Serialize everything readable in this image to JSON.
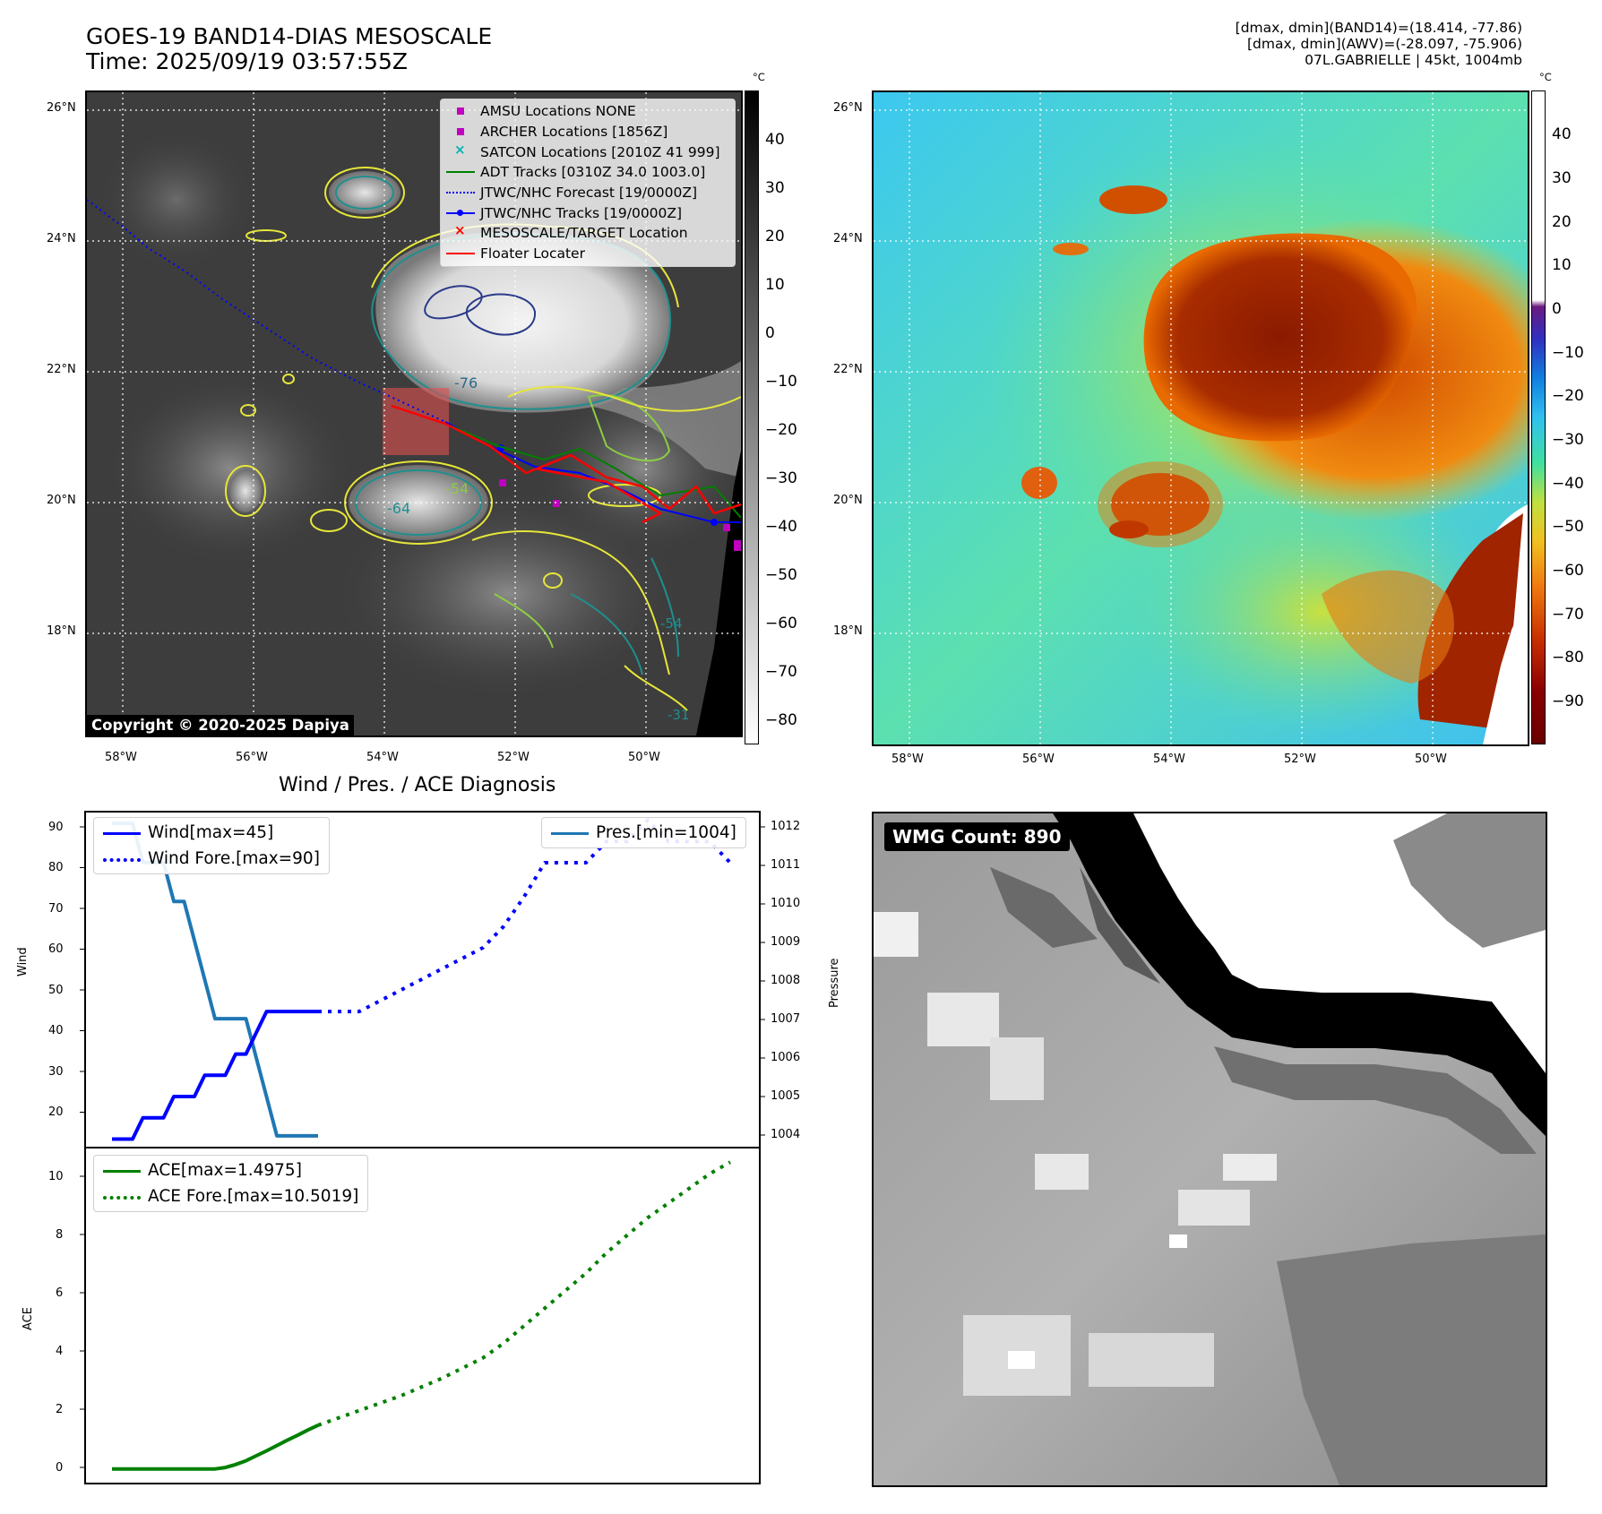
{
  "header": {
    "title_line1": "GOES-19 BAND14-DIAS MESOSCALE",
    "title_line2": "Time: 2025/09/19 03:57:55Z",
    "info_line1": "[dmax, dmin](BAND14)=(18.414, -77.86)",
    "info_line2": "[dmax, dmin](AWV)=(-28.097, -75.906)",
    "info_line3": "07L.GABRIELLE | 45kt, 1004mb"
  },
  "map_axes": {
    "lat_labels": [
      "26°N",
      "24°N",
      "22°N",
      "20°N",
      "18°N"
    ],
    "lon_labels": [
      "58°W",
      "56°W",
      "54°W",
      "52°W",
      "50°W"
    ]
  },
  "ir_panel": {
    "legend": [
      {
        "label": "AMSU Locations NONE",
        "symbol": "square",
        "color": "#c000c0"
      },
      {
        "label": "ARCHER Locations [1856Z]",
        "symbol": "square",
        "color": "#c000c0"
      },
      {
        "label": "SATCON Locations [2010Z 41 999]",
        "symbol": "x",
        "color": "#00b3b3"
      },
      {
        "label": "ADT Tracks [0310Z 34.0 1003.0]",
        "symbol": "line",
        "color": "#008000"
      },
      {
        "label": "JTWC/NHC Forecast [19/0000Z]",
        "symbol": "dotted",
        "color": "#0000ff"
      },
      {
        "label": "JTWC/NHC Tracks [19/0000Z]",
        "symbol": "line-dot",
        "color": "#0000ff"
      },
      {
        "label": "MESOSCALE/TARGET Location",
        "symbol": "x",
        "color": "#ff0000"
      },
      {
        "label": "Floater Locater",
        "symbol": "line",
        "color": "#ff0000"
      }
    ],
    "contour_labels": [
      "-76",
      "-64",
      "-54",
      "-54",
      "-31",
      "-54",
      "-54"
    ],
    "copyright": "Copyright © 2020-2025 Dapiya"
  },
  "ir_colorbar": {
    "unit": "°C",
    "ticks": [
      "40",
      "30",
      "20",
      "10",
      "0",
      "−10",
      "−20",
      "−30",
      "−40",
      "−50",
      "−60",
      "−70",
      "−80"
    ]
  },
  "wv_colorbar": {
    "unit": "°C",
    "ticks": [
      "40",
      "30",
      "20",
      "10",
      "0",
      "−10",
      "−20",
      "−30",
      "−40",
      "−50",
      "−60",
      "−70",
      "−80",
      "−90"
    ]
  },
  "diagnosis": {
    "title": "Wind / Pres. / ACE Diagnosis",
    "wind_ylabel": "Wind",
    "pres_ylabel": "Pressure",
    "ace_ylabel": "ACE",
    "wind_ticks": [
      "90",
      "80",
      "70",
      "60",
      "50",
      "40",
      "30",
      "20"
    ],
    "pres_ticks": [
      "1012",
      "1011",
      "1010",
      "1009",
      "1008",
      "1007",
      "1006",
      "1005",
      "1004"
    ],
    "ace_ticks": [
      "10",
      "8",
      "6",
      "4",
      "2",
      "0"
    ],
    "legend_wind": "Wind[max=45]",
    "legend_wind_fore": "Wind Fore.[max=90]",
    "legend_pres": "Pres.[min=1004]",
    "legend_ace": "ACE[max=1.4975]",
    "legend_ace_fore": "ACE Fore.[max=10.5019]"
  },
  "wmg": {
    "label": "WMG Count: 890"
  },
  "chart_data": [
    {
      "type": "line",
      "title": "Wind / Pres. / ACE Diagnosis",
      "ylabel": "Wind",
      "ylim": [
        13,
        92
      ],
      "x": [
        0,
        0.5,
        1,
        1.5,
        2,
        2.5,
        3,
        3.5,
        4,
        4.5,
        5,
        5.5,
        6,
        6.5,
        7,
        7.5,
        8,
        8.5,
        9,
        9.5,
        10
      ],
      "series": [
        {
          "name": "Wind[max=45]",
          "color": "#0000ff",
          "style": "solid",
          "x": [
            0,
            0.5,
            1,
            1.5,
            2,
            2.5,
            3,
            3.5,
            4,
            4.5,
            5,
            5.5,
            6,
            6.5,
            7,
            7.5,
            8,
            8.5,
            9,
            9.5,
            10
          ],
          "values": [
            15,
            15,
            15,
            20,
            20,
            20,
            25,
            25,
            25,
            30,
            30,
            30,
            35,
            35,
            40,
            45,
            45,
            45,
            45,
            45,
            45
          ]
        },
        {
          "name": "Wind Fore.[max=90]",
          "color": "#0000ff",
          "style": "dotted",
          "x": [
            10,
            12,
            14,
            16,
            18,
            19,
            20,
            21,
            22,
            23,
            24,
            25,
            26,
            27,
            28,
            29,
            30
          ],
          "values": [
            45,
            45,
            50,
            55,
            60,
            65,
            72,
            80,
            80,
            80,
            85,
            85,
            90,
            85,
            85,
            85,
            80
          ]
        },
        {
          "name": "Pres.[min=1004]",
          "color": "#1f77b4",
          "style": "solid",
          "axis": "right",
          "ylim": [
            1003.7,
            1012.3
          ],
          "x": [
            0,
            0.5,
            1,
            1.5,
            2,
            2.5,
            3,
            3.5,
            4,
            4.5,
            5,
            5.5,
            6,
            6.5,
            7,
            7.5,
            8,
            8.5,
            9,
            9.5,
            10
          ],
          "values": [
            1012,
            1012,
            1012,
            1011,
            1011,
            1011,
            1010,
            1010,
            1009,
            1008,
            1007,
            1007,
            1007,
            1007,
            1006,
            1005,
            1004,
            1004,
            1004,
            1004,
            1004
          ]
        }
      ]
    },
    {
      "type": "line",
      "ylabel": "ACE",
      "ylim": [
        -0.5,
        11.0
      ],
      "series": [
        {
          "name": "ACE[max=1.4975]",
          "color": "#008000",
          "style": "solid",
          "x": [
            0,
            1,
            2,
            3,
            4,
            5,
            5.5,
            6,
            6.5,
            7,
            7.5,
            8,
            8.5,
            9,
            9.5,
            10
          ],
          "values": [
            0,
            0,
            0,
            0,
            0,
            0,
            0.05,
            0.15,
            0.28,
            0.45,
            0.62,
            0.8,
            0.98,
            1.15,
            1.33,
            1.4975
          ]
        },
        {
          "name": "ACE Fore.[max=10.5019]",
          "color": "#008000",
          "style": "dotted",
          "x": [
            10,
            12,
            14,
            16,
            18,
            19,
            20,
            21,
            22,
            23,
            24,
            25,
            26,
            27,
            28,
            29,
            30
          ],
          "values": [
            1.4975,
            2.0,
            2.5,
            3.1,
            3.8,
            4.3,
            4.9,
            5.5,
            6.1,
            6.7,
            7.4,
            8.0,
            8.6,
            9.1,
            9.6,
            10.1,
            10.5019
          ]
        }
      ]
    }
  ],
  "colors": {
    "wind": "#0000ff",
    "pressure": "#1f77b4",
    "ace": "#008000",
    "track_red": "#ff0000",
    "track_green": "#008000"
  }
}
